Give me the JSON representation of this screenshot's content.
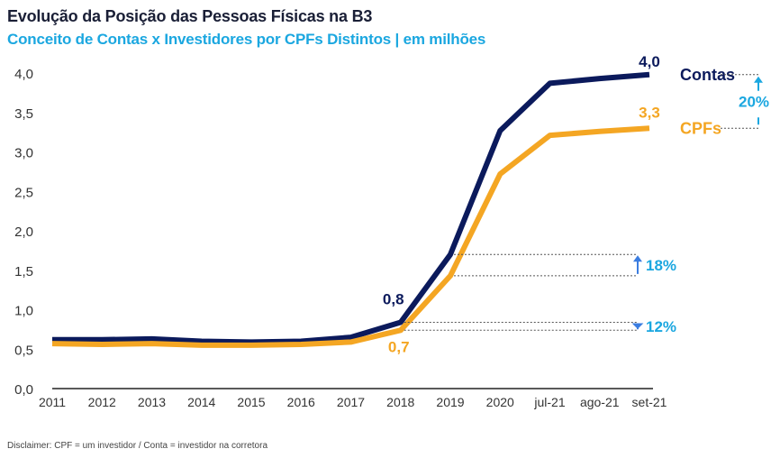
{
  "title": "Evolução da Posição das Pessoas Físicas na B3",
  "subtitle": "Conceito de Contas x Investidores por CPFs Distintos  | em milhões",
  "disclaimer": "Disclaimer: CPF = um investidor / Conta = investidor na corretora",
  "colors": {
    "contas": "#0b1a5c",
    "cpfs": "#f4a623",
    "accent": "#1ba7e0"
  },
  "chart_data": {
    "type": "line",
    "title": "Evolução da Posição das Pessoas Físicas na B3",
    "subtitle": "Conceito de Contas x Investidores por CPFs Distintos  | em milhões",
    "categories": [
      "2011",
      "2012",
      "2013",
      "2014",
      "2015",
      "2016",
      "2017",
      "2018",
      "2019",
      "2020",
      "jul-21",
      "ago-21",
      "set-21"
    ],
    "series": [
      {
        "name": "Contas",
        "values": [
          0.62,
          0.62,
          0.63,
          0.6,
          0.59,
          0.6,
          0.65,
          0.84,
          1.7,
          3.27,
          3.87,
          3.93,
          3.98
        ]
      },
      {
        "name": "CPFs",
        "values": [
          0.57,
          0.56,
          0.57,
          0.55,
          0.55,
          0.56,
          0.59,
          0.74,
          1.43,
          2.72,
          3.21,
          3.26,
          3.3
        ]
      }
    ],
    "y_ticks": [
      "0,0",
      "0,5",
      "1,0",
      "1,5",
      "2,0",
      "2,5",
      "3,0",
      "3,5",
      "4,0"
    ],
    "ylim": [
      0,
      4.0
    ],
    "legend": "right",
    "annotations": {
      "contas_2018": "0,8",
      "cpfs_2018": "0,7",
      "contas_end": "4,0",
      "cpfs_end": "3,3",
      "gap_2018": "12%",
      "gap_2019": "18%",
      "gap_end": "20%"
    }
  }
}
